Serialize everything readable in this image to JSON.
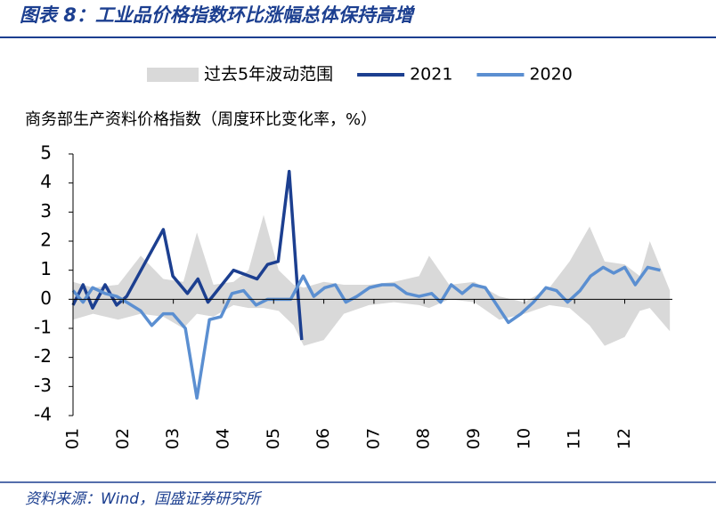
{
  "title": "图表 8：工业品价格指数环比涨幅总体保持高增",
  "source": "资料来源：Wind，国盛证券研究所",
  "chart_data": {
    "type": "line",
    "ylabel": "商务部生产资料价格指数（周度环比变化率，%）",
    "xlim": [
      1,
      12.95
    ],
    "xticks": [
      {
        "value": 1,
        "label": "01"
      },
      {
        "value": 2,
        "label": "02"
      },
      {
        "value": 3,
        "label": "03"
      },
      {
        "value": 4,
        "label": "04"
      },
      {
        "value": 5,
        "label": "05"
      },
      {
        "value": 6,
        "label": "06"
      },
      {
        "value": 7,
        "label": "07"
      },
      {
        "value": 8,
        "label": "08"
      },
      {
        "value": 9,
        "label": "09"
      },
      {
        "value": 10,
        "label": "10"
      },
      {
        "value": 11,
        "label": "11"
      },
      {
        "value": 12,
        "label": "12"
      }
    ],
    "ylim": [
      -4,
      5
    ],
    "yticks": [
      -4,
      -3,
      -2,
      -1,
      0,
      1,
      2,
      3,
      4,
      5
    ],
    "series": [
      {
        "name": "过去5年波动范围",
        "kind": "band",
        "color": "#d9d9d9",
        "x": [
          1.0,
          1.4,
          1.9,
          2.35,
          2.8,
          3.2,
          3.47,
          3.8,
          4.2,
          4.5,
          4.8,
          5.1,
          5.4,
          5.6,
          6.0,
          6.4,
          6.9,
          7.4,
          7.9,
          8.1,
          8.5,
          9.0,
          9.5,
          10.0,
          10.5,
          10.9,
          11.3,
          11.6,
          12.0,
          12.3,
          12.5,
          12.9
        ],
        "high": [
          0.6,
          0.4,
          0.5,
          1.5,
          0.7,
          0.6,
          2.3,
          0.5,
          0.6,
          1.0,
          2.9,
          1.0,
          0.5,
          0.4,
          0.6,
          0.5,
          0.5,
          0.6,
          0.8,
          1.5,
          0.5,
          0.6,
          0.1,
          -0.1,
          0.4,
          1.3,
          2.5,
          1.3,
          1.2,
          0.8,
          2.0,
          0.3
        ],
        "low": [
          -0.7,
          -0.5,
          -0.7,
          -0.5,
          -0.6,
          -1.0,
          -0.5,
          -0.6,
          -0.2,
          -0.3,
          -0.3,
          -0.4,
          -0.9,
          -1.6,
          -1.4,
          -0.5,
          -0.2,
          -0.1,
          -0.2,
          -0.3,
          0.0,
          -0.1,
          -0.7,
          -0.5,
          -0.2,
          -0.3,
          -0.9,
          -1.6,
          -1.3,
          -0.4,
          -0.3,
          -1.1
        ]
      },
      {
        "name": "2021",
        "color": "#1c3f90",
        "x": [
          1.0,
          1.2,
          1.39,
          1.64,
          1.87,
          2.07,
          2.8,
          2.99,
          3.28,
          3.49,
          3.69,
          4.2,
          4.67,
          4.88,
          5.09,
          5.31,
          5.47,
          5.56
        ],
        "values": [
          -0.2,
          0.5,
          -0.3,
          0.5,
          -0.2,
          0.1,
          2.4,
          0.8,
          0.2,
          0.7,
          -0.1,
          1.0,
          0.7,
          1.2,
          1.3,
          4.4,
          0.5,
          -1.4
        ]
      },
      {
        "name": "2020",
        "color": "#5b8fd1",
        "x": [
          1.0,
          1.2,
          1.39,
          1.64,
          1.87,
          2.07,
          2.35,
          2.57,
          2.8,
          2.99,
          3.24,
          3.47,
          3.72,
          3.95,
          4.17,
          4.4,
          4.65,
          4.88,
          5.09,
          5.34,
          5.59,
          5.8,
          6.02,
          6.23,
          6.44,
          6.66,
          6.91,
          7.16,
          7.41,
          7.65,
          7.9,
          8.15,
          8.33,
          8.54,
          8.76,
          8.97,
          9.22,
          9.68,
          9.93,
          10.18,
          10.43,
          10.64,
          10.86,
          11.11,
          11.32,
          11.57,
          11.78,
          12.0,
          12.21,
          12.46,
          12.71
        ],
        "values": [
          0.3,
          -0.1,
          0.4,
          0.2,
          0.1,
          -0.1,
          -0.4,
          -0.9,
          -0.5,
          -0.5,
          -1.0,
          -3.4,
          -0.7,
          -0.6,
          0.2,
          0.3,
          -0.2,
          0,
          0,
          0,
          0.8,
          0.1,
          0.4,
          0.5,
          -0.1,
          0.1,
          0.4,
          0.5,
          0.5,
          0.2,
          0.1,
          0.2,
          -0.1,
          0.5,
          0.2,
          0.5,
          0.4,
          -0.8,
          -0.5,
          -0.1,
          0.4,
          0.3,
          -0.1,
          0.3,
          0.8,
          1.1,
          0.9,
          1.1,
          0.5,
          1.1,
          1.0
        ]
      }
    ]
  }
}
